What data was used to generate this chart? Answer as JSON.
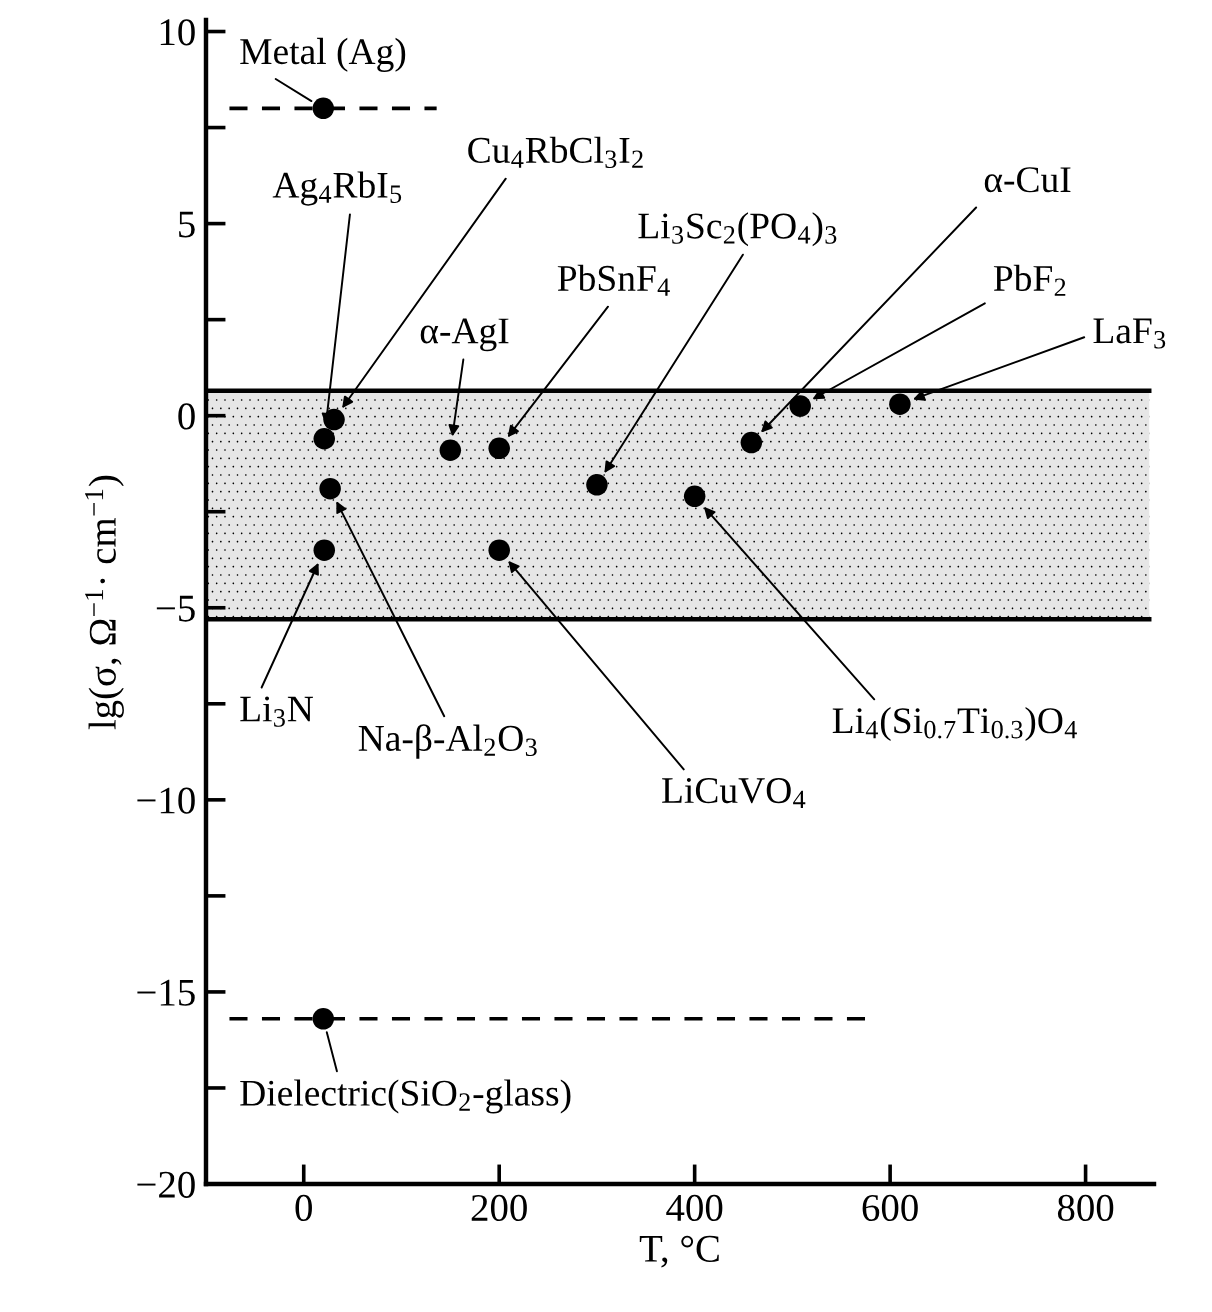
{
  "chart_data": {
    "type": "scatter",
    "xlabel": "T, °C",
    "ylabel": "lg(σ, Ω$^{−1}$· cm$^{−1}$)",
    "xlim": [
      -100,
      870
    ],
    "ylim": [
      -20,
      10.3
    ],
    "xticks": [
      0,
      200,
      400,
      600,
      800
    ],
    "yticks": [
      10,
      {
        "value": 7.5,
        "label": null
      },
      5,
      {
        "value": 2.5,
        "label": null
      },
      0,
      {
        "value": -2.5,
        "label": null
      },
      {
        "value": -5,
        "label": "−5"
      },
      {
        "value": -7.5,
        "label": null
      },
      {
        "value": -10,
        "label": "−10"
      },
      {
        "value": -12.5,
        "label": null
      },
      {
        "value": -15,
        "label": "−15"
      },
      {
        "value": -17.5,
        "label": null
      },
      {
        "value": -20,
        "label": "−20"
      }
    ],
    "grid": false,
    "legend": false,
    "series": [
      {
        "color": "#000000",
        "marker": "circle",
        "x": [
          20,
          31,
          21,
          27,
          21,
          150,
          200,
          200,
          300,
          400,
          458,
          508,
          610,
          20
        ],
        "values": [
          8,
          -0.1,
          -0.6,
          -1.9,
          -3.5,
          -0.9,
          -0.85,
          -3.5,
          -1.8,
          -2.1,
          -0.7,
          0.25,
          0.3,
          -15.7
        ]
      },
      {
        "type": "line",
        "color": "#000000",
        "line_style": "dashed",
        "x": [
          -76,
          136
        ],
        "values": [
          8,
          8
        ]
      },
      {
        "type": "line",
        "color": "#000000",
        "line_style": "dashed",
        "x": [
          -76,
          582
        ],
        "values": [
          -15.7,
          -15.7
        ]
      }
    ],
    "bands": [
      {
        "axis": "y",
        "from": -5.3,
        "to": 0.65,
        "color": "#e6e6e6"
      }
    ],
    "ref_lines": [
      {
        "axis": "y",
        "value": 0.65,
        "color": "#000000"
      },
      {
        "axis": "y",
        "value": -5.3,
        "color": "#000000"
      }
    ],
    "annotations": [
      {
        "text": "Metal (Ag)",
        "x": 20,
        "y": 8
      },
      {
        "text": "Cu$_{4}$RbCl$_{3}$I$_{2}$",
        "x": 31,
        "y": -0.1
      },
      {
        "text": "Ag$_{4}$RbI$_{5}$",
        "x": 21,
        "y": -0.6
      },
      {
        "text": "α-AgI",
        "x": 150,
        "y": -0.9
      },
      {
        "text": "PbSnF$_{4}$",
        "x": 200,
        "y": -0.85
      },
      {
        "text": "Li$_{3}$Sc$_{2}$(PO$_{4}$)$_{3}$",
        "x": 300,
        "y": -1.8
      },
      {
        "text": "α-CuI",
        "x": 458,
        "y": -0.7
      },
      {
        "text": "PbF$_{2}$",
        "x": 508,
        "y": 0.25
      },
      {
        "text": "LaF$_{3}$",
        "x": 610,
        "y": 0.3
      },
      {
        "text": "Li$_{3}$N",
        "x": 21,
        "y": -3.5
      },
      {
        "text": "Na-β-Al$_{2}$O$_{3}$",
        "x": 27,
        "y": -1.9
      },
      {
        "text": "LiCuVO$_{4}$",
        "x": 200,
        "y": -3.5
      },
      {
        "text": "Li$_{4}$(Si$_{0.7}$Ti$_{0.3}$)O$_{4}$",
        "x": 400,
        "y": -2.1
      },
      {
        "text": "Dielectric(SiO$_{2}$-glass)",
        "x": 20,
        "y": -15.7
      }
    ]
  }
}
